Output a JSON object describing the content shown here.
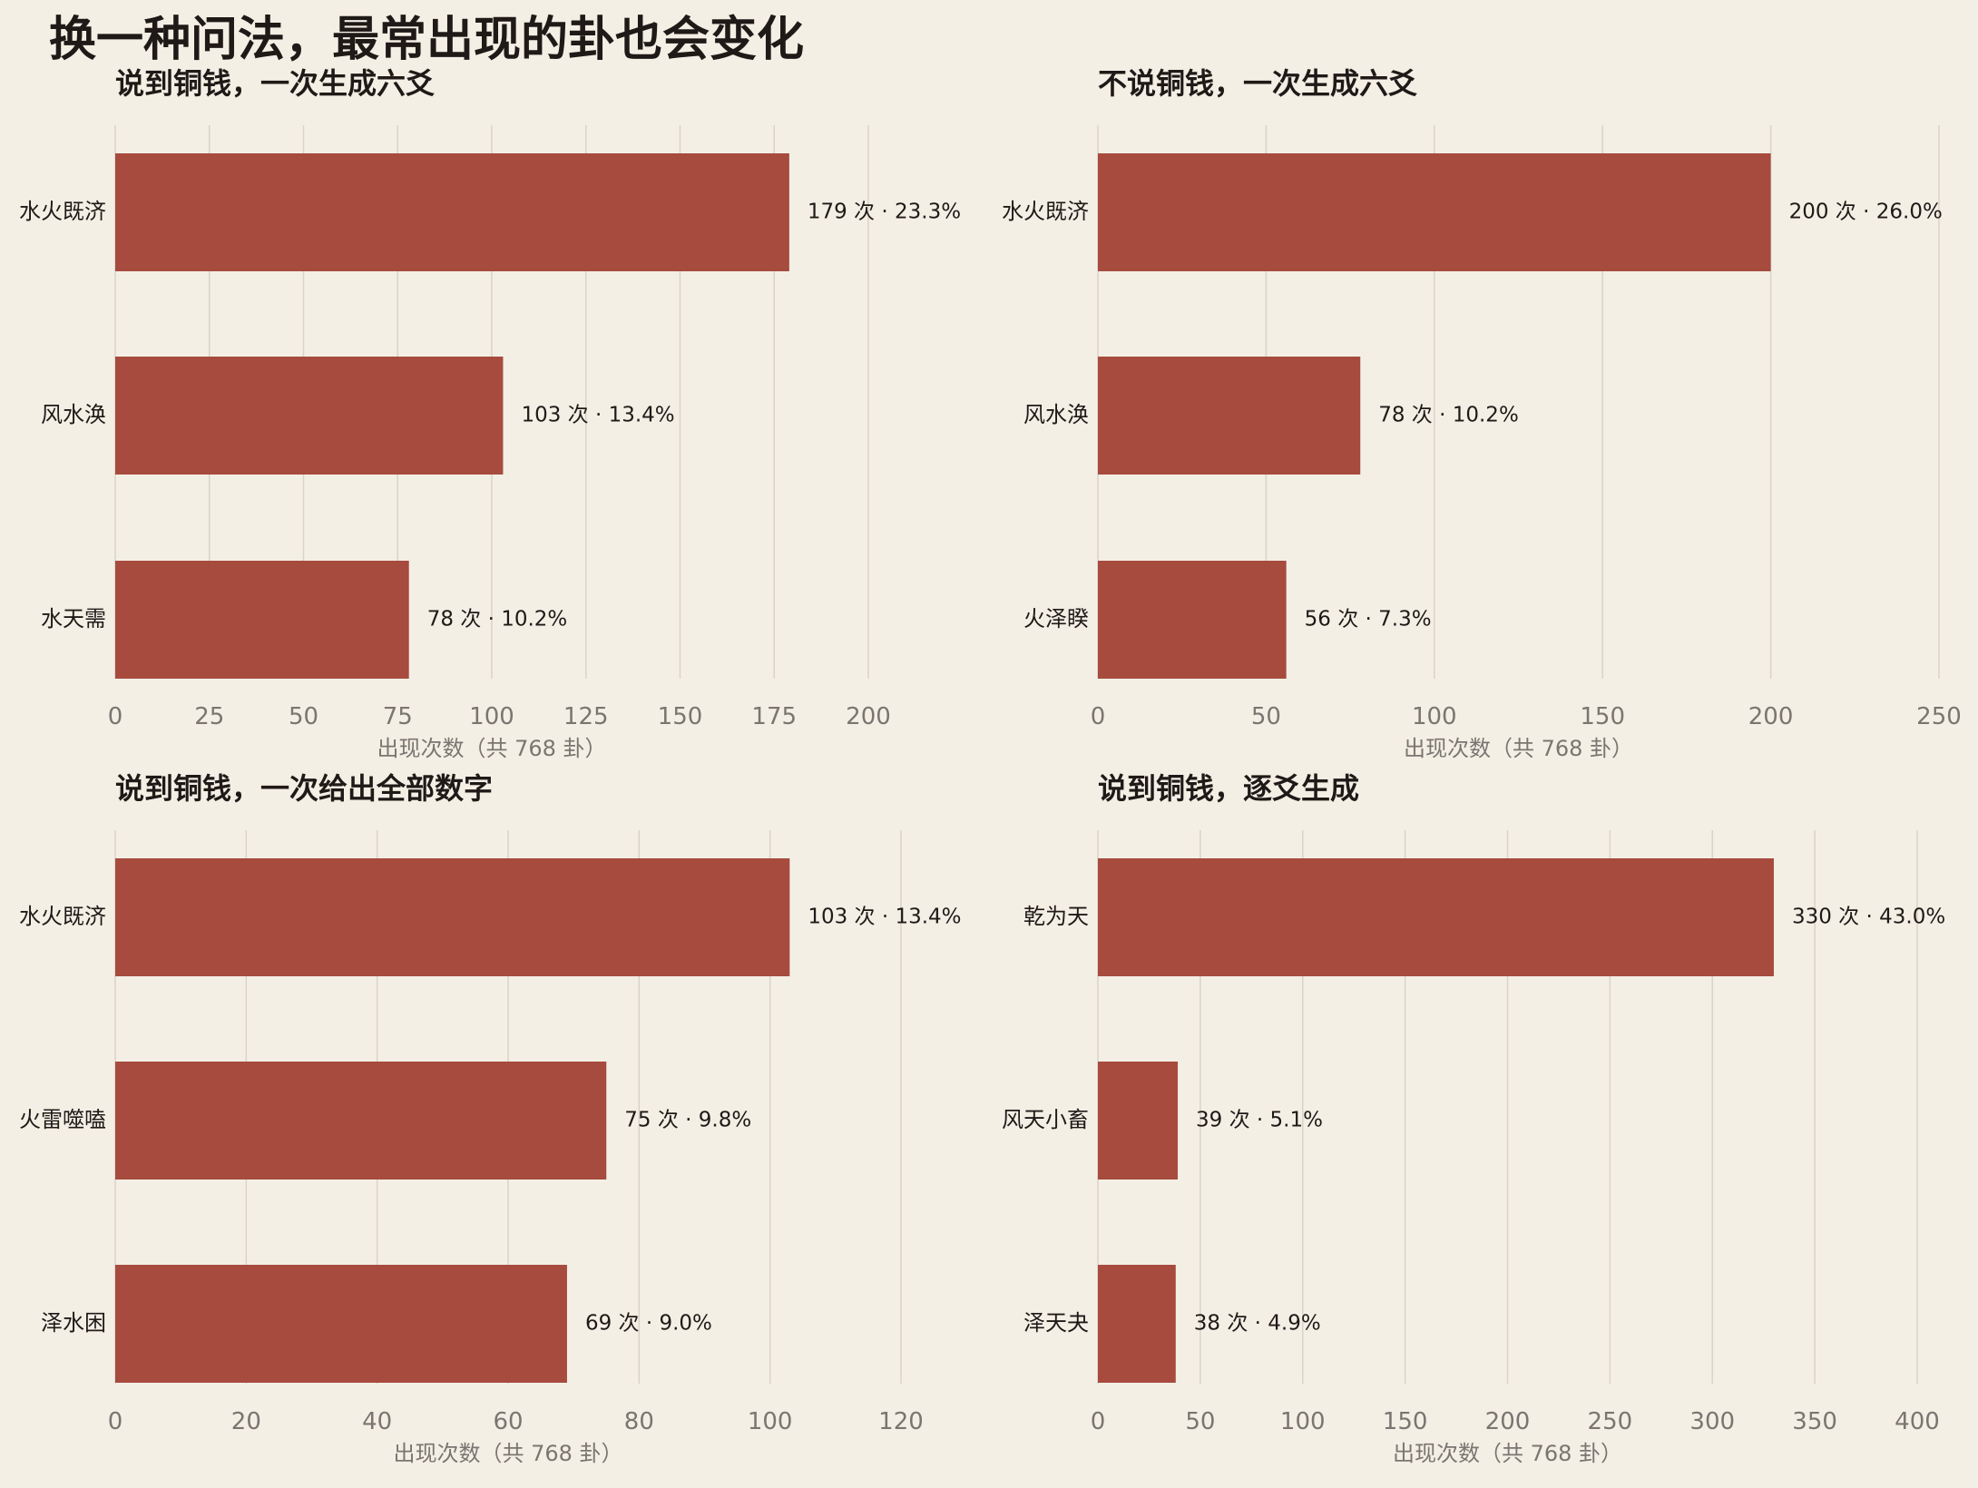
{
  "title": "换一种问法，最常出现的卦也会变化",
  "colors": {
    "background": "#f4efe5",
    "bar": "#a64b3e",
    "grid": "#d9d3c8",
    "tick_text": "#7a7570",
    "label_text": "#1f1a17"
  },
  "chart_data": [
    {
      "type": "bar",
      "orientation": "horizontal",
      "title": "说到铜钱，一次生成六爻",
      "categories": [
        "水火既济",
        "风水涣",
        "水天需"
      ],
      "values": [
        179,
        103,
        78
      ],
      "value_labels": [
        "179 次 · 23.3%",
        "103 次 · 13.4%",
        "78 次 · 10.2%"
      ],
      "xlabel": "出现次数（共 768 卦）",
      "xlim": [
        0,
        200
      ],
      "xticks": [
        0,
        25,
        50,
        75,
        100,
        125,
        150,
        175,
        200
      ],
      "grid": true
    },
    {
      "type": "bar",
      "orientation": "horizontal",
      "title": "不说铜钱，一次生成六爻",
      "categories": [
        "水火既济",
        "风水涣",
        "火泽睽"
      ],
      "values": [
        200,
        78,
        56
      ],
      "value_labels": [
        "200 次 · 26.0%",
        "78 次 · 10.2%",
        "56 次 · 7.3%"
      ],
      "xlabel": "出现次数（共 768 卦）",
      "xlim": [
        0,
        250
      ],
      "xticks": [
        0,
        50,
        100,
        150,
        200,
        250
      ],
      "grid": true
    },
    {
      "type": "bar",
      "orientation": "horizontal",
      "title": "说到铜钱，一次给出全部数字",
      "categories": [
        "水火既济",
        "火雷噬嗑",
        "泽水困"
      ],
      "values": [
        103,
        75,
        69
      ],
      "value_labels": [
        "103 次 · 13.4%",
        "75 次 · 9.8%",
        "69 次 · 9.0%"
      ],
      "xlabel": "出现次数（共 768 卦）",
      "xlim": [
        0,
        120
      ],
      "xticks": [
        0,
        20,
        40,
        60,
        80,
        100,
        120
      ],
      "grid": true
    },
    {
      "type": "bar",
      "orientation": "horizontal",
      "title": "说到铜钱，逐爻生成",
      "categories": [
        "乾为天",
        "风天小畜",
        "泽天夬"
      ],
      "values": [
        330,
        39,
        38
      ],
      "value_labels": [
        "330 次 · 43.0%",
        "39 次 · 5.1%",
        "38 次 · 4.9%"
      ],
      "xlabel": "出现次数（共 768 卦）",
      "xlim": [
        0,
        400
      ],
      "xticks": [
        0,
        50,
        100,
        150,
        200,
        250,
        300,
        350,
        400
      ],
      "grid": true
    }
  ]
}
